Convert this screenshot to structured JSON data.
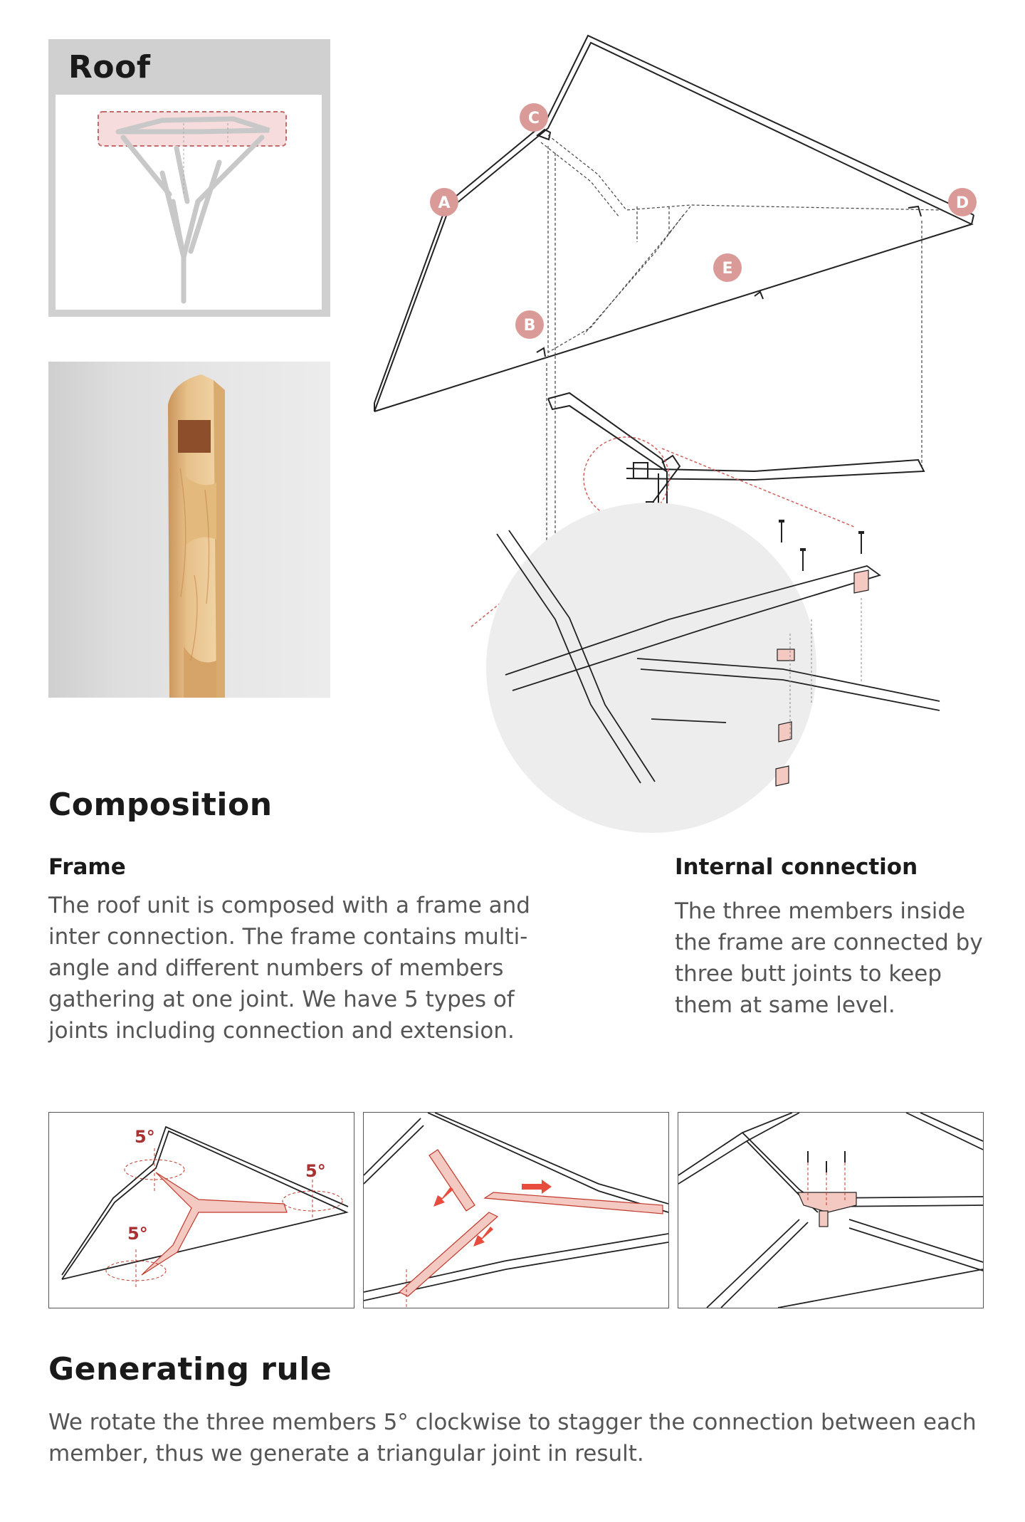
{
  "roof_card": {
    "title": "Roof"
  },
  "diagram": {
    "labels": [
      "A",
      "B",
      "C",
      "D",
      "E"
    ],
    "colors": {
      "accent": "#d99a98",
      "line": "#222222",
      "highlight": "#f4c9c2",
      "red": "#c0392b"
    }
  },
  "composition": {
    "title": "Composition",
    "frame": {
      "heading": "Frame",
      "text": "The roof unit is composed with a frame and inter connection. The frame contains multi-angle and different numbers of members gathering at one joint. We have 5 types of joints including connection and extension."
    },
    "internal": {
      "heading": "Internal connection",
      "text": "The three members inside the frame are connected by three butt joints to keep them at same level."
    }
  },
  "panels": {
    "angle_labels": [
      "5°",
      "5°",
      "5°"
    ]
  },
  "generating_rule": {
    "title": "Generating rule",
    "text": "We rotate the three members 5° clockwise to stagger the connection between each member, thus we generate a triangular joint in result."
  }
}
